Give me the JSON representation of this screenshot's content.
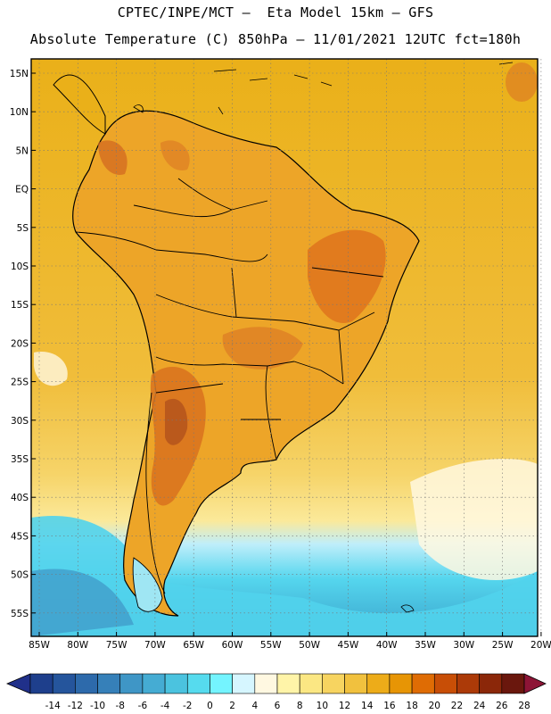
{
  "header": {
    "line1": "CPTEC/INPE/MCT –  Eta Model 15km – GFS",
    "line2": "Absolute Temperature (C) 850hPa – 11/01/2021 12UTC fct=180h"
  },
  "map": {
    "lat_labels": [
      "15N",
      "10N",
      "5N",
      "EQ",
      "5S",
      "10S",
      "15S",
      "20S",
      "25S",
      "30S",
      "35S",
      "40S",
      "45S",
      "50S",
      "55S"
    ],
    "lon_labels": [
      "85W",
      "80W",
      "75W",
      "70W",
      "65W",
      "60W",
      "55W",
      "50W",
      "45W",
      "40W",
      "35W",
      "30W",
      "25W",
      "20W"
    ]
  },
  "colorbar": {
    "labels": [
      "-14",
      "-12",
      "-10",
      "-8",
      "-6",
      "-4",
      "-2",
      "0",
      "2",
      "4",
      "6",
      "8",
      "10",
      "12",
      "14",
      "16",
      "18",
      "20",
      "22",
      "24",
      "26",
      "28"
    ],
    "colors": [
      "#1e3f8c",
      "#25559c",
      "#2d6aab",
      "#3680b9",
      "#3f96c6",
      "#45acd3",
      "#4bc3df",
      "#56dbee",
      "#74f4ff",
      "#d6f6ff",
      "#fff8e1",
      "#fff4a8",
      "#fbe783",
      "#f7d460",
      "#f1c13e",
      "#edac19",
      "#e79505",
      "#df6c04",
      "#c84e06",
      "#ac3a08",
      "#8b2709",
      "#6a170d",
      "#8d1436"
    ],
    "under_color": "#20308a"
  }
}
